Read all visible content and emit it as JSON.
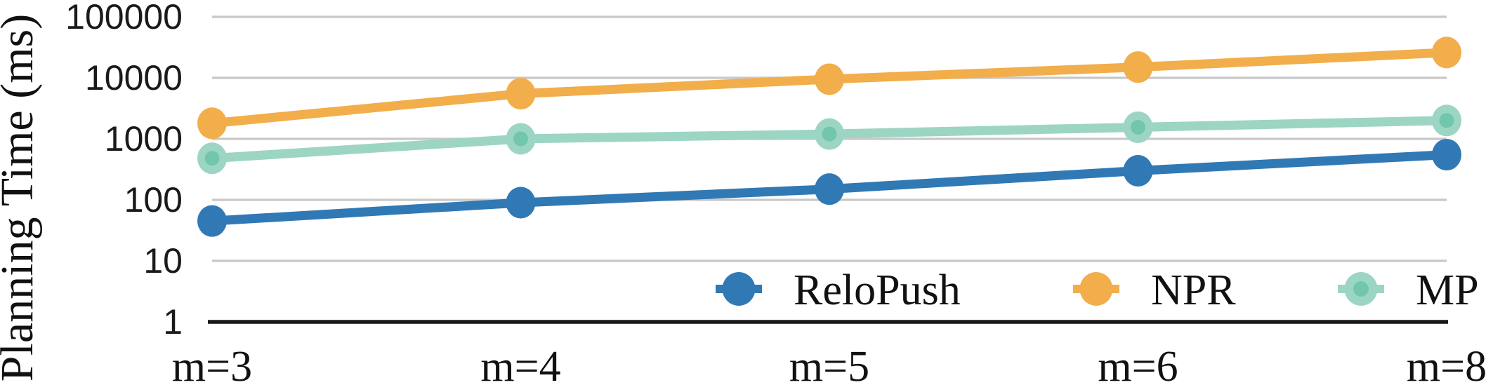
{
  "chart_data": {
    "type": "line",
    "title": "",
    "xlabel": "",
    "ylabel": "Planning Time (ms)",
    "yscale": "log",
    "ylim": [
      1,
      100000
    ],
    "grid": true,
    "legend_position": "inside-bottom-right",
    "categories": [
      "m=3",
      "m=4",
      "m=5",
      "m=6",
      "m=8"
    ],
    "y_tick_labels": [
      "1",
      "10",
      "100",
      "1000",
      "10000",
      "100000"
    ],
    "y_tick_values": [
      1,
      10,
      100,
      1000,
      10000,
      100000
    ],
    "series": [
      {
        "name": "ReloPush",
        "color": "#3079B5",
        "marker": "circle",
        "values": [
          45,
          90,
          150,
          300,
          550
        ]
      },
      {
        "name": "NPR",
        "color": "#F1AE4B",
        "marker": "circle",
        "values": [
          1800,
          5500,
          9500,
          15000,
          26000
        ]
      },
      {
        "name": "MP",
        "color": "#9CD5C4",
        "marker": "circle-two-tone",
        "marker_inner_color": "#72C6AE",
        "values": [
          480,
          1000,
          1200,
          1550,
          2000
        ]
      }
    ]
  },
  "colors": {
    "gridline": "#C8C8C8",
    "axis_line": "#181818",
    "tick_text": "#1a1a1a",
    "background": "#FFFFFF"
  }
}
